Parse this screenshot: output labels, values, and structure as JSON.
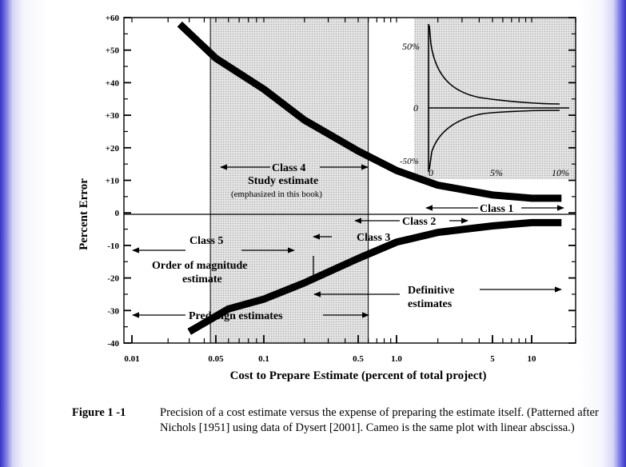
{
  "chart_data": {
    "type": "line",
    "xscale": "log",
    "xlim": [
      0.01,
      20
    ],
    "ylim": [
      -40,
      60
    ],
    "xlabel": "Cost to Prepare Estimate (percent of total project)",
    "ylabel": "Percent Error",
    "x_ticks": [
      {
        "value": 0.01,
        "label": "0.01"
      },
      {
        "value": 0.05,
        "label": "0.05"
      },
      {
        "value": 0.1,
        "label": "0.1"
      },
      {
        "value": 0.5,
        "label": "0.5"
      },
      {
        "value": 1.0,
        "label": "1.0"
      },
      {
        "value": 5,
        "label": "5"
      },
      {
        "value": 10,
        "label": "10"
      }
    ],
    "y_ticks": [
      {
        "value": 60,
        "label": "+60"
      },
      {
        "value": 50,
        "label": "+50"
      },
      {
        "value": 40,
        "label": "+40"
      },
      {
        "value": 30,
        "label": "+30"
      },
      {
        "value": 20,
        "label": "+20"
      },
      {
        "value": 10,
        "label": "+10"
      },
      {
        "value": 0,
        "label": "0"
      },
      {
        "value": -10,
        "label": "-10"
      },
      {
        "value": -20,
        "label": "-20"
      },
      {
        "value": -30,
        "label": "-30"
      },
      {
        "value": -40,
        "label": "-40"
      }
    ],
    "shaded_band": {
      "x_from": 0.045,
      "x_to": 0.6
    },
    "series": [
      {
        "name": "upper bound",
        "x": [
          0.025,
          0.05,
          0.1,
          0.2,
          0.5,
          1.0,
          2.0,
          5.0,
          10.0,
          16.0
        ],
        "y": [
          58,
          47.5,
          38,
          28.5,
          19,
          13,
          8.5,
          5.5,
          4.5,
          4.5
        ]
      },
      {
        "name": "lower bound",
        "x": [
          0.03,
          0.06,
          0.1,
          0.2,
          0.5,
          1.0,
          2.0,
          5.0,
          10.0,
          16.0
        ],
        "y": [
          -36.5,
          -29.5,
          -26.5,
          -21.5,
          -14,
          -9,
          -6,
          -4,
          -3,
          -3
        ]
      }
    ],
    "annotations": {
      "class4_title": "Class 4",
      "class4_sub": "Study estimate",
      "class4_note": "(emphasized in this book)",
      "class1": "Class 1",
      "class2": "Class 2",
      "class3": "Class 3",
      "class5": "Class 5",
      "order1": "Order of magnitude",
      "order2": "estimate",
      "definitive1": "Definitive",
      "definitive2": "estimates",
      "predesign": "Predesign estimates"
    },
    "inset": {
      "description": "Same plot with linear abscissa",
      "y_labels": {
        "top": "50%",
        "mid": "0",
        "bottom": "-50%"
      },
      "x_labels": [
        "0",
        "5%",
        "10%"
      ]
    }
  },
  "caption": {
    "label": "Figure 1 -1",
    "text": "Precision of a cost estimate versus the expense of preparing the estimate itself. (Patterned after Nichols [1951] using data of Dysert [2001]. Cameo is the same plot with linear abscissa.)"
  }
}
